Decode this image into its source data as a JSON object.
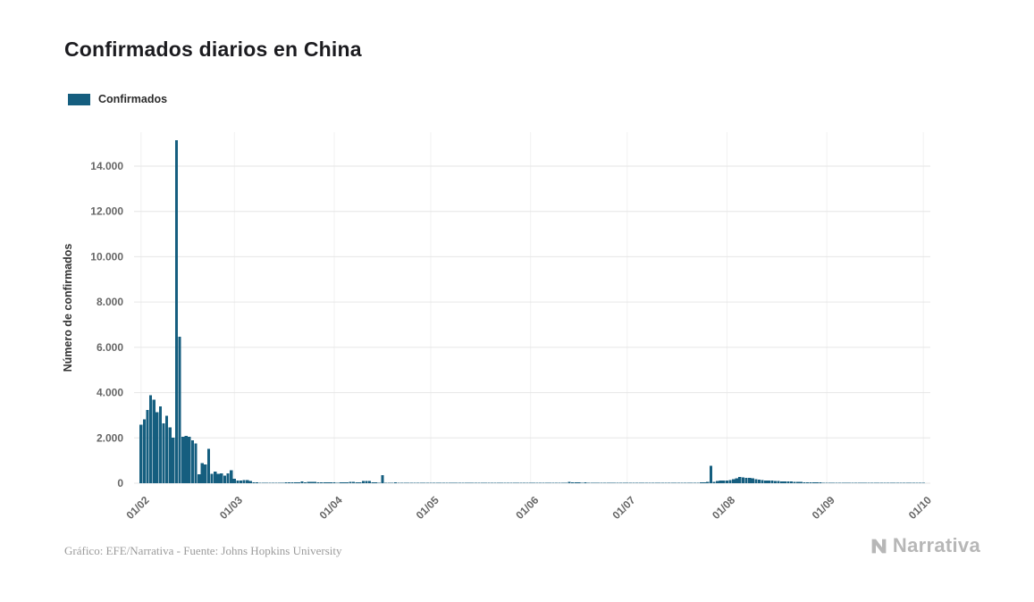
{
  "page": {
    "title": "Confirmados diarios en China",
    "credits": "Gráfico: EFE/Narrativa - Fuente: Johns Hopkins University",
    "logo_text": "Narrativa"
  },
  "legend": {
    "items": [
      {
        "label": "Confirmados",
        "color": "#155e7f"
      }
    ]
  },
  "chart_data": {
    "type": "bar",
    "title": "Confirmados diarios en China",
    "xlabel": "",
    "ylabel": "Número de confirmados",
    "legend_position": "top-left",
    "grid": true,
    "ylim": [
      0,
      15500
    ],
    "yticks": [
      0,
      2000,
      4000,
      6000,
      8000,
      10000,
      12000,
      14000
    ],
    "ytick_labels": [
      "0",
      "2.000",
      "4.000",
      "6.000",
      "8.000",
      "10.000",
      "12.000",
      "14.000"
    ],
    "xtick_labels": [
      "01/02",
      "01/03",
      "01/04",
      "01/05",
      "01/06",
      "01/07",
      "01/08",
      "01/09",
      "01/10"
    ],
    "xtick_day_indices": [
      0,
      29,
      60,
      90,
      121,
      151,
      182,
      213,
      243
    ],
    "bar_color": "#155e7f",
    "series": [
      {
        "name": "Confirmados",
        "start_label": "01/02",
        "values": [
          2590,
          2829,
          3235,
          3887,
          3694,
          3143,
          3385,
          2652,
          2973,
          2467,
          2015,
          15141,
          6463,
          2055,
          2100,
          2048,
          1888,
          1752,
          395,
          894,
          823,
          1522,
          409,
          508,
          406,
          433,
          327,
          427,
          573,
          202,
          125,
          119,
          139,
          143,
          99,
          44,
          40,
          24,
          15,
          8,
          11,
          20,
          16,
          21,
          13,
          34,
          39,
          41,
          46,
          39,
          78,
          47,
          67,
          55,
          54,
          45,
          31,
          48,
          36,
          35,
          31,
          19,
          30,
          39,
          32,
          62,
          63,
          42,
          46,
          99,
          108,
          89,
          46,
          46,
          26,
          352,
          27,
          12,
          11,
          30,
          10,
          6,
          6,
          11,
          3,
          6,
          22,
          4,
          12,
          14,
          12,
          2,
          3,
          1,
          2,
          2,
          1,
          1,
          14,
          20,
          17,
          7,
          7,
          4,
          8,
          8,
          7,
          6,
          6,
          5,
          11,
          4,
          3,
          11,
          7,
          1,
          1,
          2,
          4,
          4,
          16,
          16,
          5,
          1,
          5,
          1,
          4,
          4,
          3,
          3,
          11,
          7,
          11,
          57,
          49,
          40,
          44,
          28,
          32,
          27,
          26,
          18,
          22,
          19,
          13,
          21,
          17,
          21,
          12,
          19,
          3,
          5,
          5,
          3,
          8,
          4,
          4,
          8,
          9,
          4,
          2,
          7,
          8,
          10,
          6,
          11,
          9,
          22,
          22,
          16,
          11,
          14,
          19,
          28,
          34,
          46,
          61,
          770,
          64,
          105,
          127,
          123,
          120,
          140,
          180,
          220,
          280,
          260,
          240,
          230,
          210,
          180,
          160,
          140,
          120,
          115,
          110,
          100,
          90,
          85,
          80,
          75,
          70,
          60,
          55,
          50,
          45,
          40,
          38,
          35,
          32,
          30,
          28,
          25,
          22,
          20,
          24,
          18,
          16,
          14,
          12,
          15,
          18,
          20,
          22,
          25,
          28,
          22,
          18,
          16,
          14,
          20,
          25,
          13,
          10,
          12,
          15,
          21,
          24,
          28,
          26,
          22,
          20,
          15
        ]
      }
    ]
  }
}
